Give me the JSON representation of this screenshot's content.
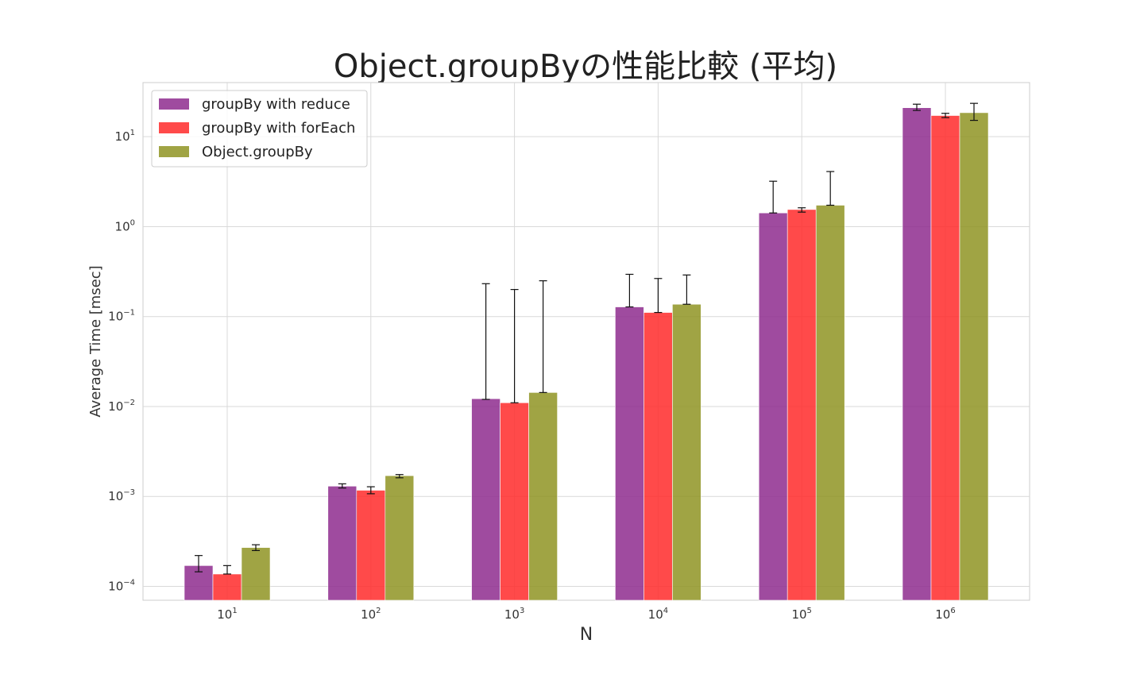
{
  "chart_data": {
    "type": "bar",
    "title": "Object.groupByの性能比較 (平均)",
    "xlabel": "N",
    "ylabel": "Average Time [msec]",
    "yscale": "log",
    "ylim": [
      7e-05,
      40
    ],
    "categories": [
      "10^1",
      "10^2",
      "10^3",
      "10^4",
      "10^5",
      "10^6"
    ],
    "x_tick_labels": [
      {
        "base": "10",
        "exp": "1"
      },
      {
        "base": "10",
        "exp": "2"
      },
      {
        "base": "10",
        "exp": "3"
      },
      {
        "base": "10",
        "exp": "4"
      },
      {
        "base": "10",
        "exp": "5"
      },
      {
        "base": "10",
        "exp": "6"
      }
    ],
    "y_ticks": [
      {
        "value": 0.0001,
        "base": "10",
        "exp": "−4"
      },
      {
        "value": 0.001,
        "base": "10",
        "exp": "−3"
      },
      {
        "value": 0.01,
        "base": "10",
        "exp": "−2"
      },
      {
        "value": 0.1,
        "base": "10",
        "exp": "−1"
      },
      {
        "value": 1,
        "base": "10",
        "exp": "0"
      },
      {
        "value": 10,
        "base": "10",
        "exp": "1"
      }
    ],
    "grid": true,
    "legend_position": "top-left",
    "series": [
      {
        "name": "groupBy with reduce",
        "color": "#8e2b8e",
        "values": [
          0.00017,
          0.0013,
          0.0122,
          0.128,
          1.42,
          21
        ],
        "err_low": [
          0.000145,
          0.00124,
          0.012,
          0.128,
          1.42,
          19.6
        ],
        "err_high": [
          0.00022,
          0.00138,
          0.232,
          0.295,
          3.2,
          23
        ]
      },
      {
        "name": "groupBy with forEach",
        "color": "#ff2a2a",
        "values": [
          0.000137,
          0.00117,
          0.011,
          0.111,
          1.55,
          17.2
        ],
        "err_low": [
          0.000137,
          0.00107,
          0.011,
          0.111,
          1.45,
          16.3
        ],
        "err_high": [
          0.00017,
          0.00128,
          0.2,
          0.265,
          1.62,
          18.2
        ]
      },
      {
        "name": "Object.groupBy",
        "color": "#8f9423",
        "values": [
          0.00027,
          0.0017,
          0.0143,
          0.137,
          1.73,
          18.5
        ],
        "err_low": [
          0.00025,
          0.00161,
          0.0143,
          0.137,
          1.73,
          15.2
        ],
        "err_high": [
          0.00029,
          0.00175,
          0.25,
          0.29,
          4.1,
          23.5
        ]
      }
    ]
  }
}
